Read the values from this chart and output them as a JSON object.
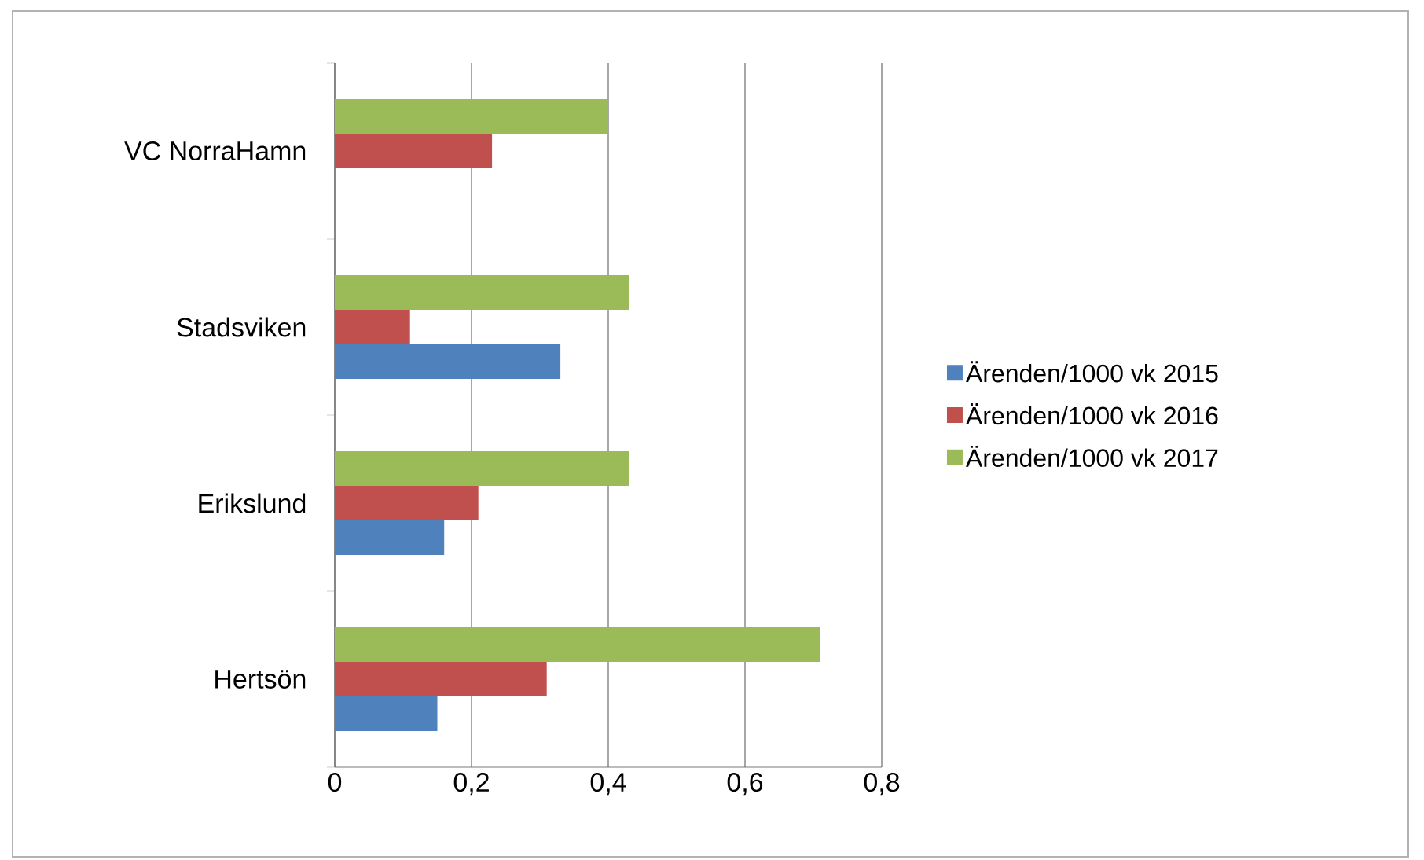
{
  "chart_data": {
    "type": "bar",
    "orientation": "horizontal",
    "categories": [
      "VC NorraHamn",
      "Stadsviken",
      "Erikslund",
      "Hertsön"
    ],
    "series": [
      {
        "name": "Ärenden/1000 vk 2015",
        "color": "#4f81bd",
        "values": [
          null,
          0.33,
          0.16,
          0.15
        ]
      },
      {
        "name": "Ärenden/1000 vk 2016",
        "color": "#c0504d",
        "values": [
          0.23,
          0.11,
          0.21,
          0.31
        ]
      },
      {
        "name": "Ärenden/1000 vk 2017",
        "color": "#9bbb59",
        "values": [
          0.4,
          0.43,
          0.43,
          0.71
        ]
      }
    ],
    "xlim": [
      0,
      0.8
    ],
    "xticks": [
      {
        "value": 0,
        "label": "0"
      },
      {
        "value": 0.2,
        "label": "0,2"
      },
      {
        "value": 0.4,
        "label": "0,4"
      },
      {
        "value": 0.6,
        "label": "0,6"
      },
      {
        "value": 0.8,
        "label": "0,8"
      }
    ],
    "grid": "x",
    "legend": "right"
  }
}
